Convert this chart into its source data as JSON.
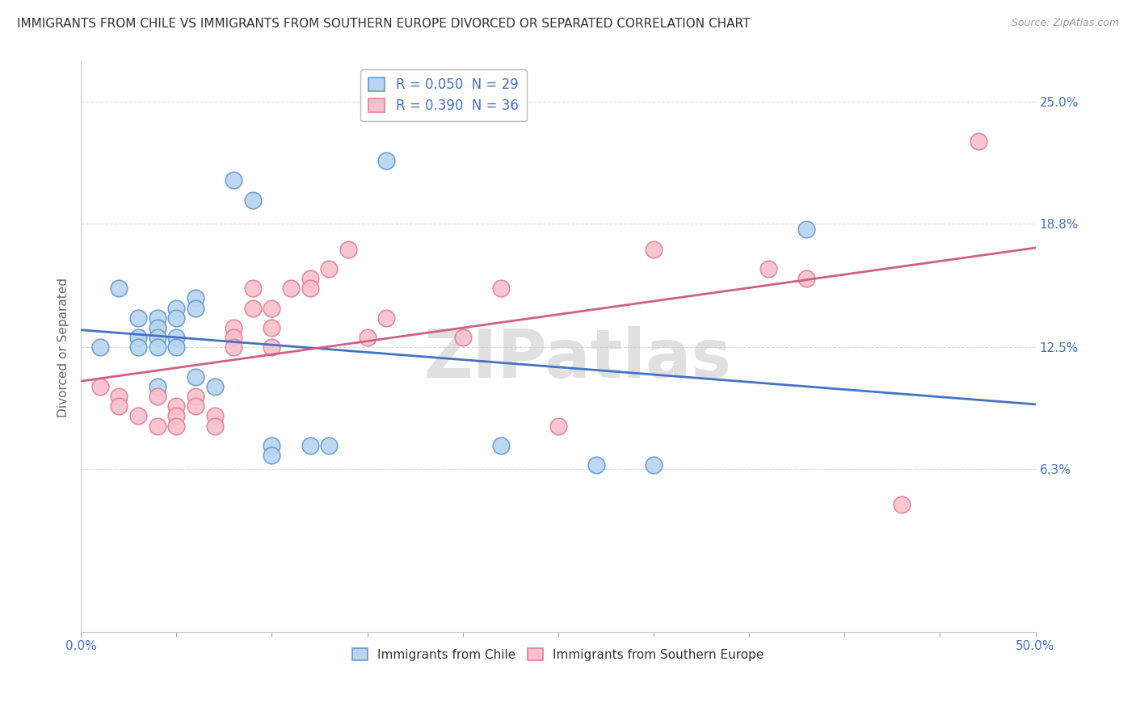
{
  "title": "IMMIGRANTS FROM CHILE VS IMMIGRANTS FROM SOUTHERN EUROPE DIVORCED OR SEPARATED CORRELATION CHART",
  "source": "Source: ZipAtlas.com",
  "ylabel": "Divorced or Separated",
  "xlim": [
    0,
    0.5
  ],
  "ylim": [
    -0.02,
    0.27
  ],
  "plot_ylim": [
    -0.02,
    0.27
  ],
  "yticks": [
    0.063,
    0.125,
    0.188,
    0.25
  ],
  "ytick_labels": [
    "6.3%",
    "12.5%",
    "18.8%",
    "25.0%"
  ],
  "chile_color": "#b8d4f0",
  "chile_edge_color": "#6699cc",
  "southern_color": "#f8c0cc",
  "southern_edge_color": "#e08098",
  "chile_line_color": "#4472c4",
  "southern_line_color": "#d06080",
  "watermark": "ZIPatlas",
  "watermark_color": "#cccccc",
  "background_color": "#ffffff",
  "grid_color": "#dddddd",
  "legend1_label1": "R = 0.050  N = 29",
  "legend1_label2": "R = 0.390  N = 36",
  "legend2_label1": "Immigrants from Chile",
  "legend2_label2": "Immigrants from Southern Europe",
  "chile_x": [
    0.01,
    0.02,
    0.03,
    0.03,
    0.03,
    0.04,
    0.04,
    0.04,
    0.04,
    0.04,
    0.05,
    0.05,
    0.05,
    0.05,
    0.06,
    0.06,
    0.06,
    0.07,
    0.08,
    0.09,
    0.1,
    0.1,
    0.12,
    0.13,
    0.16,
    0.22,
    0.27,
    0.3,
    0.38
  ],
  "chile_y": [
    0.125,
    0.155,
    0.14,
    0.13,
    0.125,
    0.14,
    0.135,
    0.13,
    0.125,
    0.105,
    0.145,
    0.14,
    0.13,
    0.125,
    0.15,
    0.145,
    0.11,
    0.105,
    0.21,
    0.2,
    0.075,
    0.07,
    0.075,
    0.075,
    0.22,
    0.075,
    0.065,
    0.065,
    0.185
  ],
  "southern_x": [
    0.01,
    0.02,
    0.02,
    0.03,
    0.04,
    0.04,
    0.05,
    0.05,
    0.05,
    0.06,
    0.06,
    0.07,
    0.07,
    0.08,
    0.08,
    0.08,
    0.09,
    0.09,
    0.1,
    0.1,
    0.1,
    0.11,
    0.12,
    0.12,
    0.13,
    0.14,
    0.15,
    0.16,
    0.2,
    0.22,
    0.25,
    0.3,
    0.36,
    0.38,
    0.43,
    0.47
  ],
  "southern_y": [
    0.105,
    0.1,
    0.095,
    0.09,
    0.1,
    0.085,
    0.095,
    0.09,
    0.085,
    0.1,
    0.095,
    0.09,
    0.085,
    0.135,
    0.13,
    0.125,
    0.155,
    0.145,
    0.145,
    0.135,
    0.125,
    0.155,
    0.16,
    0.155,
    0.165,
    0.175,
    0.13,
    0.14,
    0.13,
    0.155,
    0.085,
    0.175,
    0.165,
    0.16,
    0.045,
    0.23
  ]
}
